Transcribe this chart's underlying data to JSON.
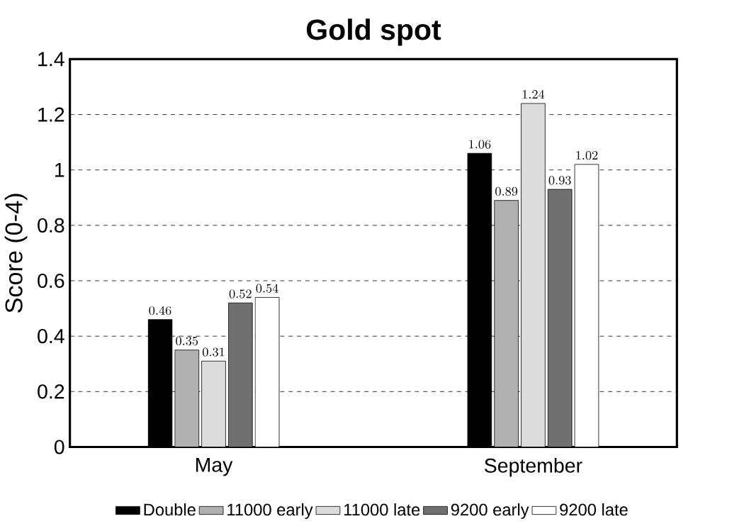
{
  "chart_data": {
    "type": "bar",
    "title": "Gold spot",
    "ylabel": "Score (0-4)",
    "categories": [
      "May",
      "September"
    ],
    "series": [
      {
        "name": "Double",
        "color": "#000000",
        "values": [
          0.46,
          1.06
        ]
      },
      {
        "name": "11000 early",
        "color": "#b0b0b0",
        "values": [
          0.35,
          0.89
        ]
      },
      {
        "name": "11000 late",
        "color": "#dcdcdc",
        "values": [
          0.31,
          1.24
        ]
      },
      {
        "name": "9200 early",
        "color": "#707070",
        "values": [
          0.52,
          0.93
        ]
      },
      {
        "name": "9200 late",
        "color": "#ffffff",
        "values": [
          0.54,
          1.02
        ]
      }
    ],
    "ylim": [
      0,
      1.4
    ],
    "yticks": [
      0,
      0.2,
      0.4,
      0.6,
      0.8,
      1,
      1.2,
      1.4
    ],
    "grid": "y",
    "legend": "bottom",
    "data_labels": true
  }
}
